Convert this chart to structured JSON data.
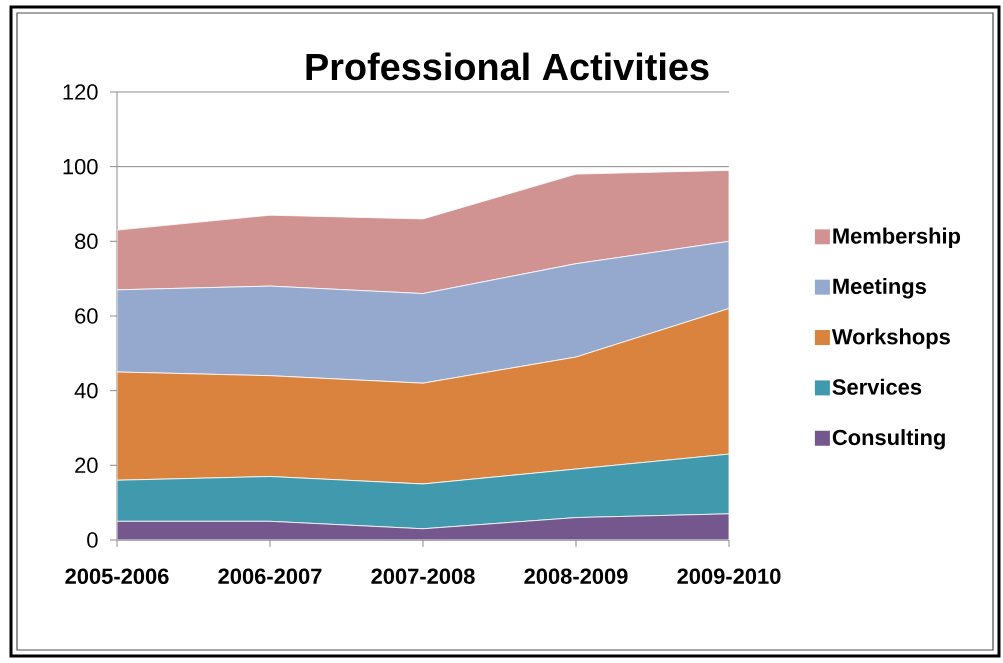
{
  "chart_data": {
    "type": "area",
    "title": "Professional Activities",
    "categories": [
      "2005-2006",
      "2006-2007",
      "2007-2008",
      "2008-2009",
      "2009-2010"
    ],
    "stacked": true,
    "ylim": [
      0,
      120
    ],
    "yticks": [
      0,
      20,
      40,
      60,
      80,
      100,
      120
    ],
    "grid": "y",
    "legend": "right",
    "series": [
      {
        "name": "Consulting",
        "color": "#74578c",
        "values": [
          5,
          5,
          3,
          6,
          7
        ]
      },
      {
        "name": "Services",
        "color": "#4199ae",
        "values": [
          11,
          12,
          12,
          13,
          16
        ]
      },
      {
        "name": "Workshops",
        "color": "#da833f",
        "values": [
          29,
          27,
          27,
          30,
          39
        ]
      },
      {
        "name": "Meetings",
        "color": "#95a9cf",
        "values": [
          22,
          24,
          24,
          25,
          18
        ]
      },
      {
        "name": "Membership",
        "color": "#d19392",
        "values": [
          16,
          19,
          20,
          24,
          19
        ]
      }
    ]
  }
}
